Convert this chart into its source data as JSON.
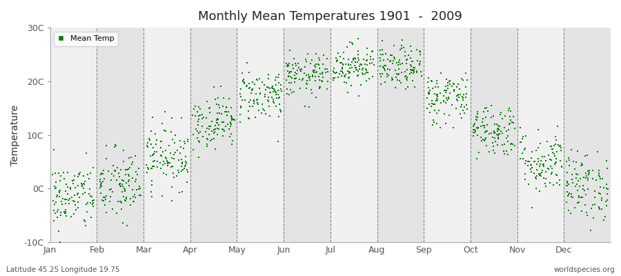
{
  "title": "Monthly Mean Temperatures 1901  -  2009",
  "ylabel": "Temperature",
  "dot_color": "#008000",
  "bg_color": "#FFFFFF",
  "band_colors": [
    "#F0F0F0",
    "#E4E4E4"
  ],
  "ylim": [
    -10,
    30
  ],
  "yticks": [
    -10,
    0,
    10,
    20,
    30
  ],
  "ytick_labels": [
    "-10C",
    "0C",
    "10C",
    "20C",
    "30C"
  ],
  "month_labels": [
    "Jan",
    "Feb",
    "Mar",
    "Apr",
    "May",
    "Jun",
    "Jul",
    "Aug",
    "Sep",
    "Oct",
    "Nov",
    "Dec"
  ],
  "footer_left": "Latitude 45.25 Longitude 19.75",
  "footer_right": "worldspecies.org",
  "legend_label": "Mean Temp",
  "monthly_means": [
    -1.5,
    0.5,
    6.0,
    12.5,
    17.5,
    21.0,
    23.0,
    22.5,
    17.0,
    11.0,
    5.0,
    0.5
  ],
  "monthly_stds": [
    3.2,
    3.5,
    3.0,
    2.5,
    2.5,
    2.0,
    2.0,
    2.0,
    2.5,
    2.5,
    3.0,
    3.2
  ],
  "n_years": 109,
  "seed": 42,
  "marker_size": 4
}
